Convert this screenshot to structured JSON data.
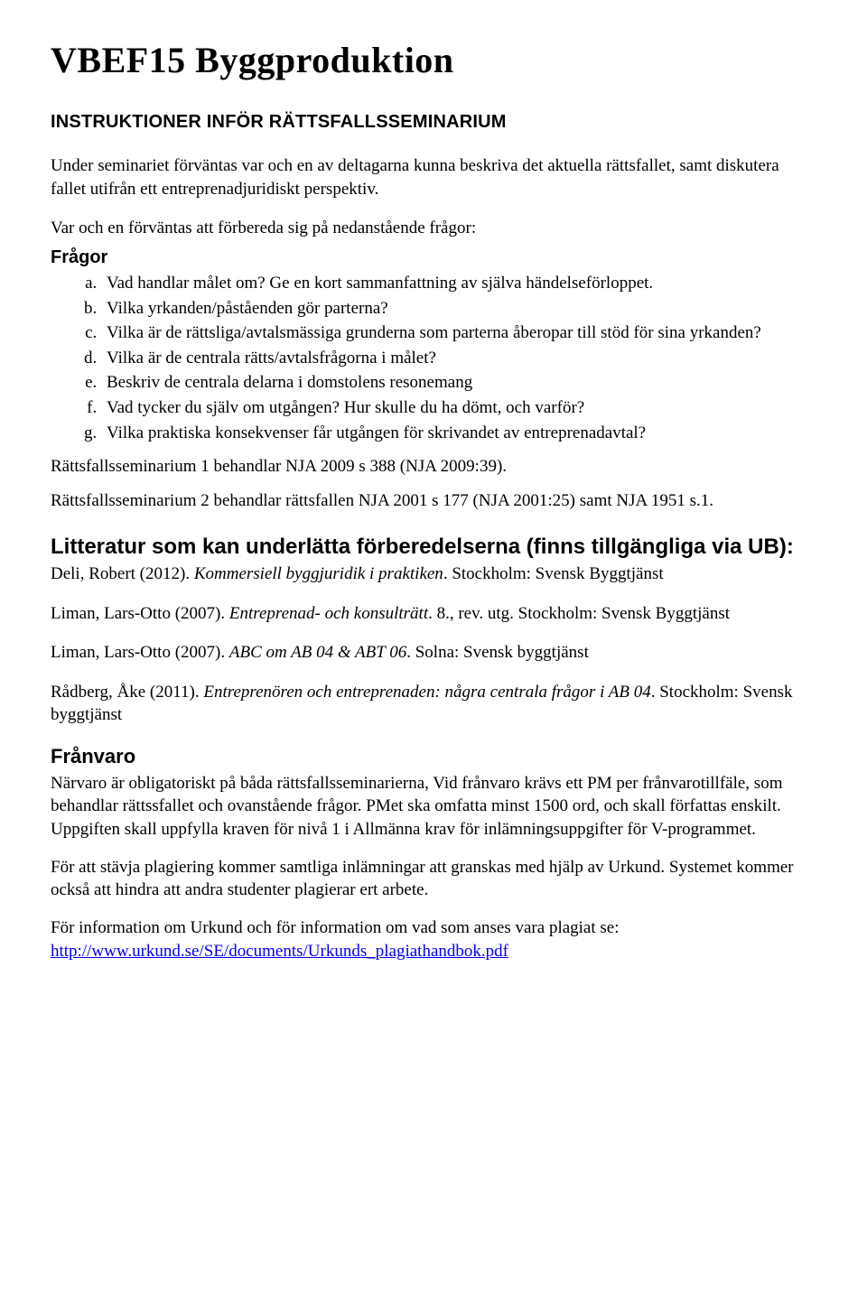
{
  "title": "VBEF15 Byggproduktion",
  "subheading": "INSTRUKTIONER INFÖR RÄTTSFALLSSEMINARIUM",
  "intro": "Under seminariet förväntas var och en av deltagarna kunna beskriva det aktuella rättsfallet, samt diskutera fallet utifrån ett entreprenadjuridiskt perspektiv.",
  "prep": "Var och en förväntas att förbereda sig på nedanstående frågor:",
  "questions_label": "Frågor",
  "questions": [
    "Vad handlar målet om? Ge en kort sammanfattning av själva händelseförloppet.",
    "Vilka yrkanden/påståenden gör parterna?",
    "Vilka är de rättsliga/avtalsmässiga grunderna som parterna åberopar till stöd för sina yrkanden?",
    "Vilka är de centrala rätts/avtalsfrågorna i målet?",
    "Beskriv de centrala delarna i domstolens resonemang",
    "Vad tycker du själv om utgången? Hur skulle du ha dömt, och varför?",
    "Vilka praktiska konsekvenser får utgången för skrivandet av entreprenadavtal?"
  ],
  "sem1": "Rättsfallsseminarium 1 behandlar NJA 2009 s 388 (NJA 2009:39).",
  "sem2": "Rättsfallsseminarium 2 behandlar rättsfallen NJA 2001 s 177 (NJA 2001:25) samt NJA 1951 s.1.",
  "lit_heading": "Litteratur som kan underlätta förberedelserna (finns tillgängliga via UB):",
  "refs": {
    "deli_a": "Deli, Robert (2012). ",
    "deli_i": "Kommersiell byggjuridik i praktiken",
    "deli_b": ". Stockholm: Svensk Byggtjänst",
    "liman1_a": "Liman, Lars-Otto (2007). ",
    "liman1_i": "Entreprenad- och konsulträtt",
    "liman1_b": ". 8., rev. utg. Stockholm: Svensk Byggtjänst",
    "liman2_a": "Liman, Lars-Otto (2007). ",
    "liman2_i": "ABC om AB 04 & ABT 06",
    "liman2_b": ". Solna: Svensk byggtjänst",
    "radberg_a": "Rådberg, Åke (2011). ",
    "radberg_i": "Entreprenören och entreprenaden: några centrala frågor i AB 04",
    "radberg_b": ". Stockholm: Svensk byggtjänst"
  },
  "franvaro_heading": "Frånvaro",
  "franvaro_p1": "Närvaro är obligatoriskt på båda rättsfallsseminarierna, Vid frånvaro krävs ett PM per frånvarotillfäle, som behandlar rättssfallet och ovanstående frågor. PMet ska omfatta minst 1500 ord, och skall författas enskilt. Uppgiften skall uppfylla kraven för nivå 1 i Allmänna krav för inlämningsuppgifter för V-programmet.",
  "franvaro_p2": "För att stävja plagiering kommer samtliga inlämningar att granskas med hjälp av Urkund. Systemet kommer också att hindra att andra studenter plagierar ert arbete.",
  "franvaro_p3_a": "För information om Urkund och för information om vad som anses vara plagiat se:",
  "franvaro_link": "http://www.urkund.se/SE/documents/Urkunds_plagiathandbok.pdf"
}
